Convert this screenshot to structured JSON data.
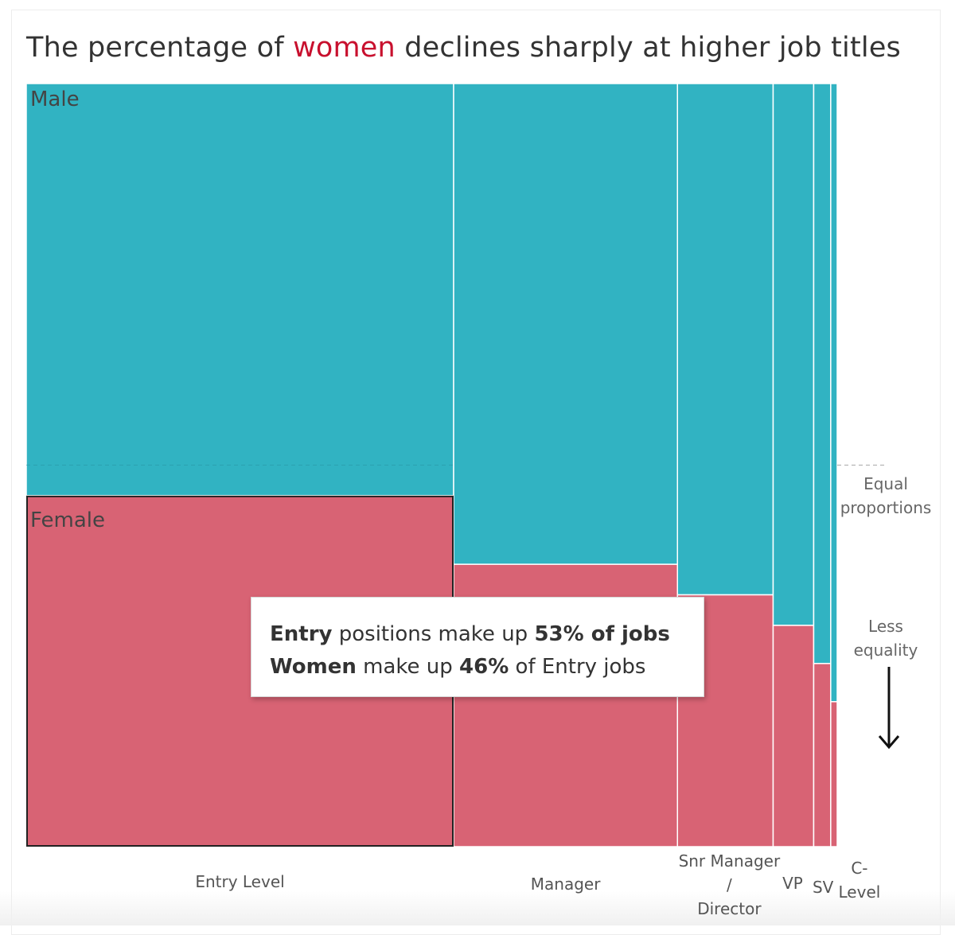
{
  "title": {
    "prefix": "The percentage of ",
    "highlight": "women",
    "suffix": " declines sharply at higher job titles"
  },
  "colors": {
    "male": "#31b3c2",
    "female": "#d86374",
    "highlight": "#c8102e"
  },
  "chart_data": {
    "type": "marimekko",
    "title": "The percentage of women declines sharply at higher job titles",
    "categories": [
      "Entry Level",
      "Manager",
      "Snr Manager / Director",
      "VP",
      "SV",
      "C-Level"
    ],
    "category_labels": [
      [
        "Entry Level"
      ],
      [
        "Manager"
      ],
      [
        "Snr Manager",
        "/",
        "Director"
      ],
      [
        "VP"
      ],
      [
        "SV"
      ],
      [
        "C-",
        "Level"
      ]
    ],
    "share_of_jobs_pct": [
      52.7,
      27.6,
      11.8,
      5.0,
      2.1,
      0.8
    ],
    "series": [
      {
        "name": "Male",
        "values": [
          54,
          63,
          67,
          71,
          76,
          81
        ]
      },
      {
        "name": "Female",
        "values": [
          46,
          37,
          33,
          29,
          24,
          19
        ]
      }
    ],
    "ylim": [
      0,
      100
    ],
    "reference_line": {
      "value": 50,
      "label": [
        "Equal",
        "proportions"
      ]
    },
    "annotation": {
      "label": [
        "Less",
        "equality"
      ],
      "arrow": "down"
    },
    "selected_category": "Entry Level"
  },
  "tooltip": {
    "line1": {
      "bold1": "Entry",
      "text1": " positions make up ",
      "bold2": "53% of jobs"
    },
    "line2": {
      "bold1": "Women",
      "text1": " make up ",
      "bold2": "46%",
      "text2": " of Entry jobs"
    }
  }
}
